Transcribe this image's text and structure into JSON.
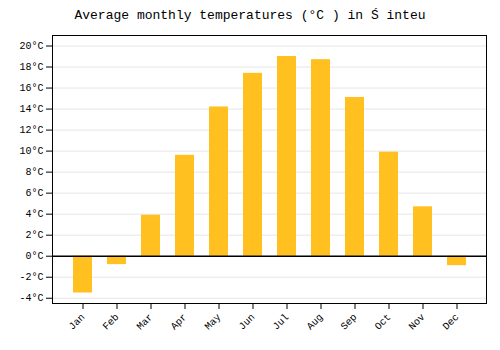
{
  "chart_data": {
    "type": "bar",
    "title": "Average monthly temperatures (°C ) in Ś inteu",
    "categories": [
      "Jan",
      "Feb",
      "Mar",
      "Apr",
      "May",
      "Jun",
      "Jul",
      "Aug",
      "Sep",
      "Oct",
      "Nov",
      "Dec"
    ],
    "values": [
      -3.5,
      -0.8,
      3.9,
      9.6,
      14.2,
      17.4,
      19.0,
      18.7,
      15.1,
      9.9,
      4.7,
      -0.9
    ],
    "color": "#FFC020",
    "ylim": [
      -4.5,
      21
    ],
    "yticks": [
      {
        "value": -4,
        "label": "-4°C"
      },
      {
        "value": -2,
        "label": "-2°C"
      },
      {
        "value": 0,
        "label": "0°C"
      },
      {
        "value": 2,
        "label": "2°C"
      },
      {
        "value": 4,
        "label": "4°C"
      },
      {
        "value": 6,
        "label": "6°C"
      },
      {
        "value": 8,
        "label": "8°C"
      },
      {
        "value": 10,
        "label": "10°C"
      },
      {
        "value": 12,
        "label": "12°C"
      },
      {
        "value": 14,
        "label": "14°C"
      },
      {
        "value": 16,
        "label": "16°C"
      },
      {
        "value": 18,
        "label": "18°C"
      },
      {
        "value": 20,
        "label": "20°C"
      }
    ],
    "grid": true
  }
}
